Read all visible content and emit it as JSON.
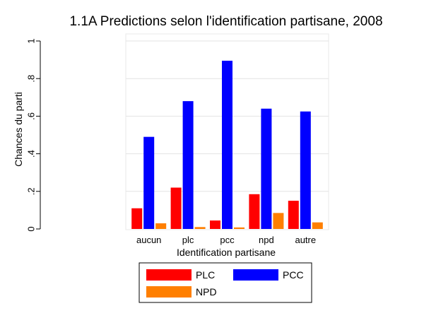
{
  "chart_data": {
    "type": "bar",
    "title": "1.1A Predictions selon l'identification partisane, 2008",
    "xlabel": "Identification partisane",
    "ylabel": "Chances du parti",
    "ylim": [
      0,
      1
    ],
    "yticks": [
      "0",
      ".2",
      ".4",
      ".6",
      ".8",
      "1"
    ],
    "grid": true,
    "legend_position": "bottom",
    "categories": [
      "aucun",
      "plc",
      "pcc",
      "npd",
      "autre"
    ],
    "series": [
      {
        "name": "PLC",
        "color": "#ff0000",
        "values": [
          0.11,
          0.22,
          0.045,
          0.185,
          0.15
        ]
      },
      {
        "name": "PCC",
        "color": "#0000ff",
        "values": [
          0.49,
          0.68,
          0.895,
          0.64,
          0.625
        ]
      },
      {
        "name": "NPD",
        "color": "#ff7f00",
        "values": [
          0.03,
          0.01,
          0.008,
          0.085,
          0.035
        ]
      }
    ]
  }
}
